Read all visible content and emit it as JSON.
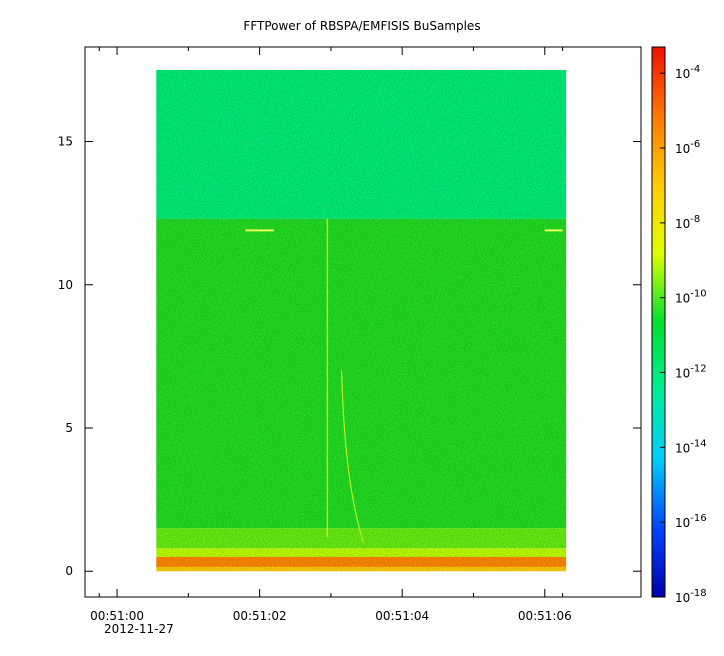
{
  "chart_data": {
    "type": "heatmap",
    "title": "FFTPower of RBSPA/EMFISIS  BuSamples",
    "xlabel": "",
    "ylabel": "",
    "x_ticks": [
      {
        "label": "00:51:00",
        "value": 0
      },
      {
        "label": "00:51:02",
        "value": 2
      },
      {
        "label": "00:51:04",
        "value": 4
      },
      {
        "label": "00:51:06",
        "value": 6
      }
    ],
    "x_minor_ticks": [
      -0.25,
      1.0,
      3.0,
      5.0,
      6.25
    ],
    "x_date_label": "2012-11-27",
    "xlim": [
      -0.45,
      7.35
    ],
    "data_xrange": [
      0.55,
      6.3
    ],
    "y_ticks": [
      0,
      5,
      10,
      15
    ],
    "ylim": [
      -0.9,
      18.3
    ],
    "data_yrange": [
      0,
      17.5
    ],
    "colorbar": {
      "scale": "log",
      "range_exponents": [
        -18,
        -3.3
      ],
      "tick_base": "10",
      "tick_exponents": [
        "-4",
        "-6",
        "-8",
        "-10",
        "-12",
        "-14",
        "-16",
        "-18"
      ],
      "colors": [
        "#0000aa",
        "#0044ff",
        "#00ccff",
        "#00ee99",
        "#00e030",
        "#dfff00",
        "#ffcc00",
        "#ff7700",
        "#ee1100"
      ]
    },
    "features": {
      "upper_band_color": "#00ee77",
      "upper_band_yrange": [
        12.3,
        17.5
      ],
      "lower_band_color": "#22dd22",
      "lower_band_yrange": [
        1.5,
        12.3
      ],
      "noise_floor_colors": [
        "#bbff00",
        "#ffcc00",
        "#ff8800"
      ],
      "vertical_line_x": 2.95,
      "horizontal_line_y": 11.9,
      "horizontal_line_segments": [
        [
          1.8,
          2.2
        ],
        [
          6.0,
          6.25
        ]
      ]
    }
  }
}
